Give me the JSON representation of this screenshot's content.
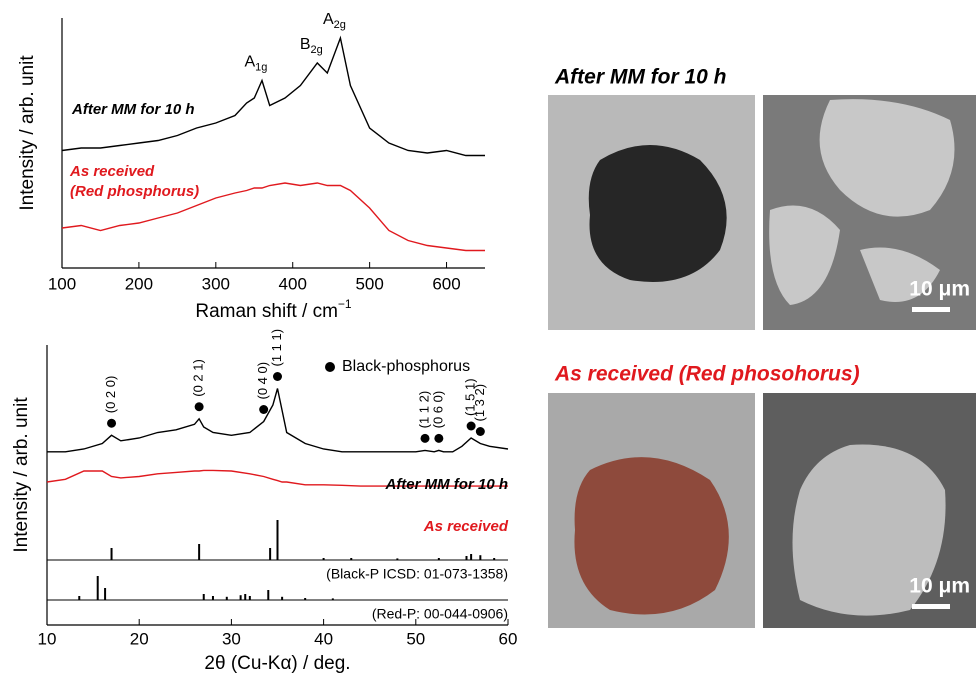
{
  "chart_data": [
    {
      "type": "line",
      "x_label": "Raman shift / cm",
      "x_label_sup": "−1",
      "y_label": "Intensity / arb. unit",
      "xlim": [
        100,
        650
      ],
      "xticks": [
        100,
        200,
        300,
        400,
        500,
        600
      ],
      "ylim": [
        0,
        10
      ],
      "x": [
        100,
        125,
        150,
        175,
        200,
        225,
        250,
        275,
        300,
        325,
        340,
        350,
        360,
        370,
        390,
        410,
        432,
        445,
        462,
        475,
        500,
        525,
        550,
        575,
        600,
        625,
        650
      ],
      "series": [
        {
          "name": "After MM for 10 h",
          "color": "#000000",
          "values": [
            4.7,
            4.8,
            4.8,
            4.9,
            5.0,
            5.1,
            5.3,
            5.6,
            5.8,
            6.1,
            6.6,
            6.8,
            7.5,
            6.5,
            6.8,
            7.3,
            8.2,
            7.8,
            9.2,
            7.3,
            5.6,
            5.0,
            4.7,
            4.6,
            4.7,
            4.5,
            4.5
          ]
        },
        {
          "name": "As received",
          "note": "(Red phosphorus)",
          "color": "#e0191e",
          "values": [
            1.6,
            1.7,
            1.5,
            1.7,
            1.8,
            2.0,
            2.2,
            2.5,
            2.8,
            3.0,
            3.1,
            3.2,
            3.2,
            3.3,
            3.4,
            3.3,
            3.4,
            3.3,
            3.3,
            3.1,
            2.4,
            1.5,
            1.1,
            0.9,
            0.8,
            0.7,
            0.7
          ]
        }
      ],
      "annotations": [
        {
          "label": "A",
          "sub": "1g",
          "x": 360
        },
        {
          "label": "B",
          "sub": "2g",
          "x": 432
        },
        {
          "label": "A",
          "sub": "2g",
          "x": 462
        }
      ]
    },
    {
      "type": "line",
      "x_label": "2θ (Cu-Kα) / deg.",
      "y_label": "Intensity / arb. unit",
      "xlim": [
        10,
        60
      ],
      "xticks": [
        10,
        20,
        30,
        40,
        50,
        60
      ],
      "ylim": [
        0,
        10
      ],
      "legend": "Black-phosphorus",
      "x": [
        10,
        12,
        14,
        16,
        17,
        18,
        20,
        22,
        24,
        26,
        26.5,
        27,
        28,
        30,
        32,
        33.5,
        34.5,
        35,
        35.5,
        36,
        38,
        40,
        42,
        44,
        46,
        48,
        50,
        51,
        52,
        52.5,
        53,
        54,
        55,
        56,
        57,
        58,
        60
      ],
      "series": [
        {
          "name": "After MM for 10 h",
          "color": "#000000",
          "values": [
            6.3,
            6.3,
            6.4,
            6.6,
            6.9,
            6.7,
            6.8,
            7.0,
            7.1,
            7.3,
            7.5,
            7.2,
            7.0,
            6.9,
            7.0,
            7.4,
            8.0,
            8.6,
            7.8,
            7.0,
            6.6,
            6.4,
            6.3,
            6.3,
            6.3,
            6.3,
            6.3,
            6.35,
            6.3,
            6.35,
            6.3,
            6.3,
            6.5,
            6.8,
            6.6,
            6.5,
            6.4
          ]
        },
        {
          "name": "As received",
          "color": "#e0191e",
          "values": [
            5.2,
            5.3,
            5.6,
            5.6,
            5.4,
            5.35,
            5.4,
            5.5,
            5.55,
            5.6,
            5.6,
            5.62,
            5.62,
            5.6,
            5.5,
            5.4,
            5.3,
            5.25,
            5.2,
            5.2,
            5.1,
            5.1,
            5.08,
            5.05,
            5.05,
            5.05,
            5.05,
            5.05,
            5.05,
            5.05,
            5.05,
            5.05,
            5.05,
            5.05,
            5.05,
            5.05,
            5.05
          ]
        }
      ],
      "peaks": [
        {
          "label": "(0 2 0)",
          "x": 17
        },
        {
          "label": "(0 2 1)",
          "x": 26.5
        },
        {
          "label": "(0 4 0)",
          "x": 33.5
        },
        {
          "label": "(1 1 1)",
          "x": 35
        },
        {
          "label": "(1 1 2)",
          "x": 51
        },
        {
          "label": "(0 6 0)",
          "x": 52.5
        },
        {
          "label": "(1 5 1)",
          "x": 56
        },
        {
          "label": "(1 3 2)",
          "x": 57
        }
      ],
      "references": [
        {
          "name": "(Black-P ICSD: 01-073-1358)",
          "x": [
            17,
            26.5,
            34.2,
            35,
            40,
            43,
            48,
            52.5,
            55.5,
            56,
            57,
            58.5
          ],
          "values": [
            0.3,
            0.4,
            0.3,
            1.0,
            0.05,
            0.05,
            0.04,
            0.05,
            0.1,
            0.15,
            0.12,
            0.05
          ]
        },
        {
          "name": "(Red-P: 00-044-0906)",
          "x": [
            13.5,
            15.5,
            16.3,
            27,
            28,
            29.5,
            31,
            31.5,
            32,
            34,
            35.5,
            38,
            41
          ],
          "values": [
            0.1,
            0.6,
            0.3,
            0.15,
            0.1,
            0.08,
            0.12,
            0.15,
            0.1,
            0.25,
            0.08,
            0.05,
            0.04
          ]
        }
      ]
    }
  ],
  "photos": {
    "top_title": "After MM for 10 h",
    "bottom_title": "As received (Red phosohorus)",
    "top_scale": "10 μm",
    "bottom_scale": "10 μm"
  }
}
